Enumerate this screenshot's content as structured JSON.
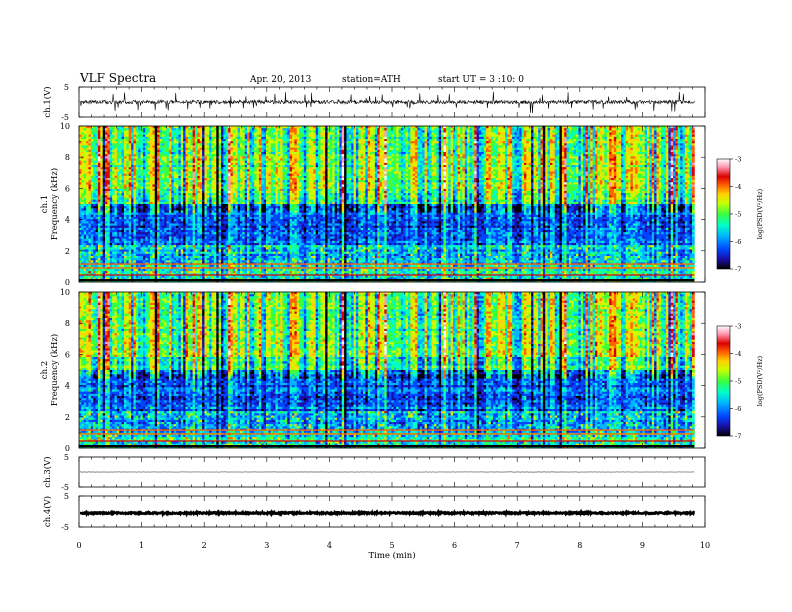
{
  "header": {
    "title": "VLF Spectra",
    "date": "Apr. 20, 2013",
    "station": "station=ATH",
    "start": "start UT =  3 :10: 0"
  },
  "chart_data": [
    {
      "id": "ch1",
      "type": "line",
      "ylabel": "ch.1(V)",
      "ylim": [
        -5,
        5
      ],
      "yticks": [
        "5",
        "-5"
      ],
      "baseline": 0,
      "noise_amplitude": 0.6,
      "spike_amplitude": 2.2
    },
    {
      "id": "ch1-spec",
      "type": "heatmap",
      "ylabel": "ch.1",
      "ylabel2": "Frequency (kHz)",
      "ylim": [
        0,
        10
      ],
      "yticks": [
        "0",
        "2",
        "4",
        "6",
        "8",
        "10"
      ],
      "colorbar": {
        "label": "log(PSD(V²/Hz)",
        "range": [
          -7,
          -3
        ],
        "ticks": [
          "-3",
          "-4",
          "-5",
          "-6",
          "-7"
        ]
      }
    },
    {
      "id": "ch2-spec",
      "type": "heatmap",
      "ylabel": "ch.2",
      "ylabel2": "Frequency (kHz)",
      "ylim": [
        0,
        10
      ],
      "yticks": [
        "0",
        "2",
        "4",
        "6",
        "8",
        "10"
      ],
      "colorbar": {
        "label": "log(PSD(V²/Hz)",
        "range": [
          -7,
          -3
        ],
        "ticks": [
          "-3",
          "-4",
          "-5",
          "-6",
          "-7"
        ]
      }
    },
    {
      "id": "ch3",
      "type": "line",
      "ylabel": "ch.3(V)",
      "ylim": [
        -5,
        5
      ],
      "yticks": [
        "5",
        "-5"
      ],
      "baseline": 0,
      "noise_amplitude": 0.05,
      "spike_amplitude": 0
    },
    {
      "id": "ch4",
      "type": "line",
      "ylabel": "ch.4(V)",
      "ylim": [
        -5,
        5
      ],
      "yticks": [
        "5",
        "-5"
      ],
      "baseline": -0.5,
      "noise_amplitude": 0.25,
      "spike_amplitude": 0
    }
  ],
  "x_axis": {
    "label": "Time (min)",
    "range": [
      0,
      10
    ],
    "data_end": 9.83,
    "ticks": [
      "0",
      "1",
      "2",
      "3",
      "4",
      "5",
      "6",
      "7",
      "8",
      "9",
      "10"
    ]
  },
  "colormap": [
    "#000000",
    "#1a0fa6",
    "#0046ff",
    "#00b4ff",
    "#00ffc8",
    "#3cff3c",
    "#c8ff00",
    "#ffd200",
    "#ff6400",
    "#dc0000",
    "#ff9ab4",
    "#ffffff"
  ]
}
